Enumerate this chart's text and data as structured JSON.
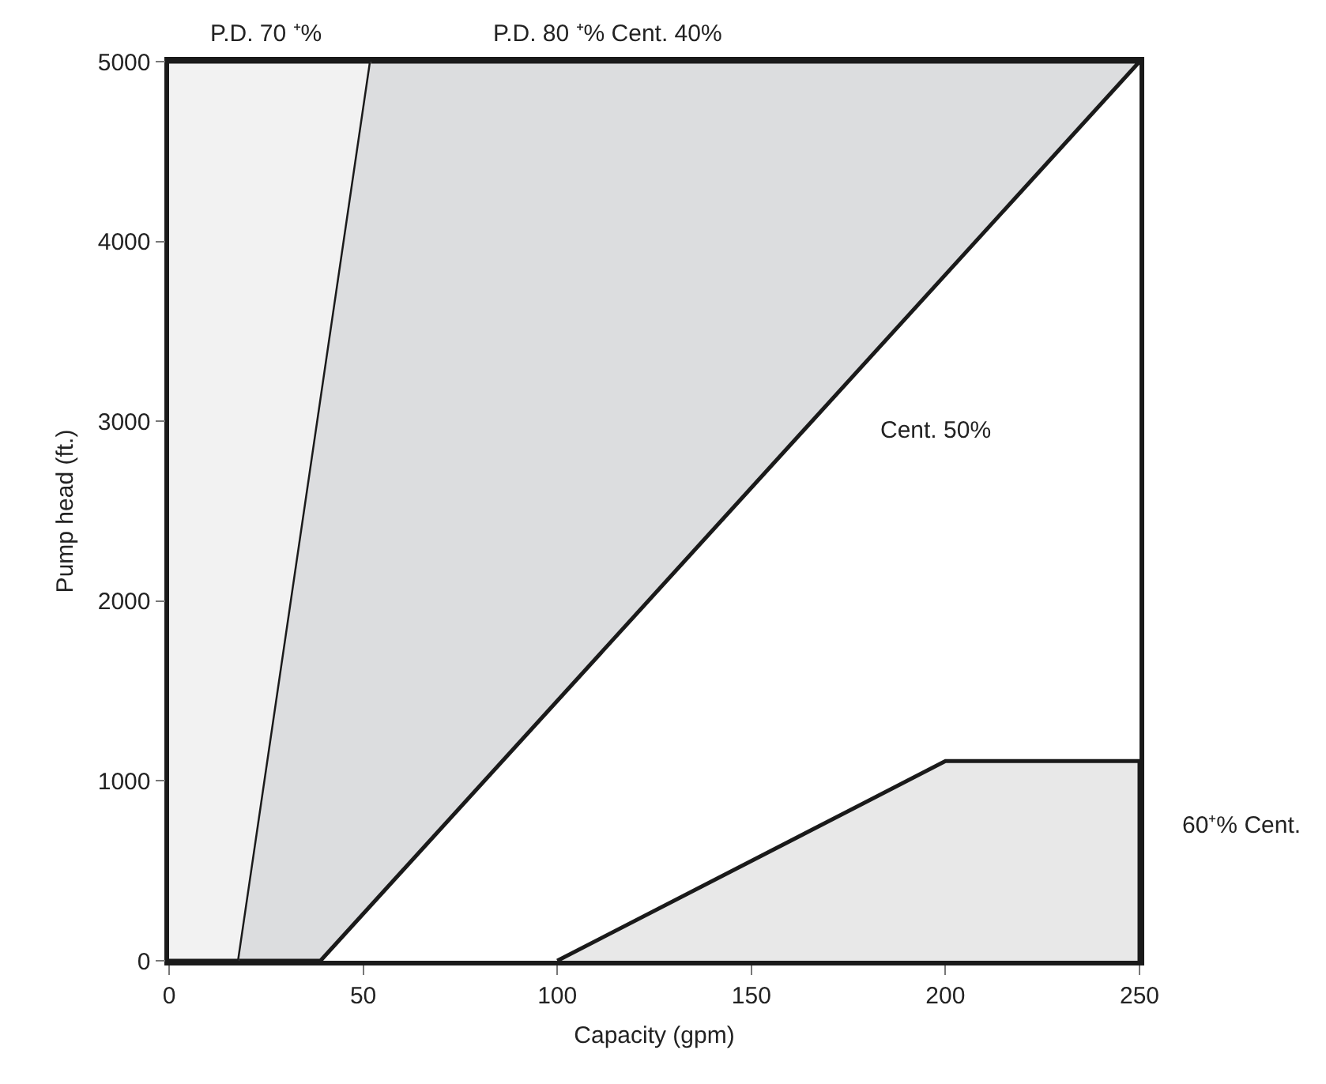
{
  "chart_data": {
    "type": "area",
    "xlabel": "Capacity (gpm)",
    "ylabel": "Pump head (ft.)",
    "xlim": [
      0,
      250
    ],
    "xticks": [
      0,
      50,
      100,
      150,
      200,
      250
    ],
    "ylim": [
      0,
      5000
    ],
    "yticks": [
      0,
      1000,
      2000,
      3000,
      4000,
      5000
    ],
    "series": [
      {
        "color": "#f2f2f2",
        "x": [
          0,
          18,
          52,
          0
        ],
        "values": [
          0,
          0,
          5000,
          5000
        ]
      },
      {
        "color": "#dcdddf",
        "x": [
          18,
          39,
          250,
          52
        ],
        "values": [
          0,
          0,
          5000,
          5000
        ]
      },
      {
        "color": "#e8e8e8",
        "x": [
          100,
          200,
          250,
          250
        ],
        "values": [
          0,
          1110,
          1110,
          0
        ]
      }
    ],
    "annotations": [
      "P.D. 70 ⁺%",
      "P.D. 80 ⁺% Cent. 40%",
      "Cent. 50%",
      "60⁺% Cent."
    ]
  }
}
